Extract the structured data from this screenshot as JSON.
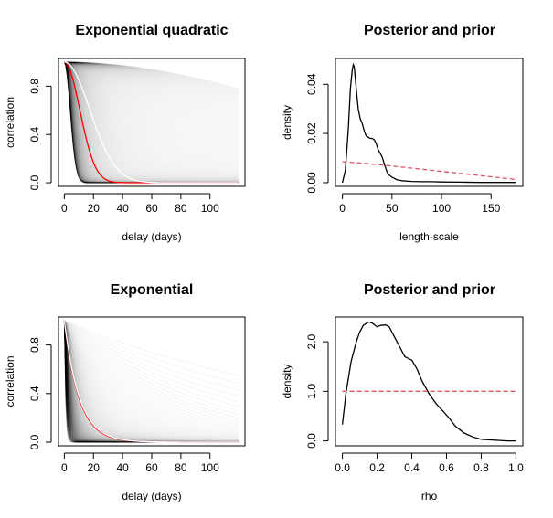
{
  "chart_data": [
    {
      "id": "exp-quadratic",
      "type": "line",
      "title": "Exponential quadratic",
      "xlabel": "delay (days)",
      "ylabel": "correlation",
      "xlim": [
        -4,
        124
      ],
      "ylim": [
        -0.03,
        1.03
      ],
      "xticks": [
        0,
        20,
        40,
        60,
        80,
        100
      ],
      "yticks": [
        0.0,
        0.4,
        0.8
      ],
      "tick_labels_x": [
        "0",
        "20",
        "40",
        "60",
        "80",
        "100"
      ],
      "tick_labels_y": [
        "0.0",
        "0.4",
        "0.8"
      ],
      "kernel": "exponential_quadratic",
      "sample_curves": {
        "count": 400,
        "length_scale_range": [
          4,
          170
        ],
        "color": "#000000"
      },
      "series": [
        {
          "length_scale": 10.6,
          "color": "#ff0000"
        },
        {
          "length_scale": 17.5,
          "color": "#ffffff"
        }
      ],
      "grid": false
    },
    {
      "id": "posterior-prior-1",
      "type": "line",
      "title": "Posterior and prior",
      "xlabel": "length-scale",
      "ylabel": "density",
      "xlim": [
        -7,
        182
      ],
      "ylim": [
        -0.0015,
        0.0505
      ],
      "xticks": [
        0,
        50,
        100,
        150
      ],
      "yticks": [
        0.0,
        0.02,
        0.04
      ],
      "tick_labels_x": [
        "0",
        "50",
        "100",
        "150"
      ],
      "tick_labels_y": [
        "0.00",
        "0.02",
        "0.04"
      ],
      "series": [
        {
          "color": "#000000",
          "dash": "solid",
          "x": [
            0,
            3,
            6,
            8,
            10,
            11,
            12,
            14,
            16,
            18,
            20,
            22,
            24,
            26,
            28,
            30,
            32,
            34,
            36,
            38,
            40,
            42,
            44,
            46,
            50,
            55,
            60,
            70,
            80,
            90,
            100,
            120,
            140,
            160,
            175
          ],
          "y": [
            0.0,
            0.005,
            0.022,
            0.038,
            0.046,
            0.048,
            0.047,
            0.038,
            0.03,
            0.026,
            0.024,
            0.021,
            0.019,
            0.0185,
            0.018,
            0.018,
            0.0175,
            0.016,
            0.0135,
            0.012,
            0.0105,
            0.008,
            0.0055,
            0.0035,
            0.0022,
            0.0012,
            0.0008,
            0.0005,
            0.0004,
            0.0004,
            0.0003,
            0.0002,
            0.0001,
            0.0001,
            0.0001
          ]
        },
        {
          "color": "#df536b",
          "dash": "dashed",
          "x": [
            0,
            25,
            50,
            75,
            100,
            125,
            150,
            175
          ],
          "y": [
            0.0085,
            0.0078,
            0.0068,
            0.0057,
            0.0046,
            0.0035,
            0.0024,
            0.0013
          ]
        }
      ],
      "grid": false
    },
    {
      "id": "exponential",
      "type": "line",
      "title": "Exponential",
      "xlabel": "delay (days)",
      "ylabel": "correlation",
      "xlim": [
        -4,
        124
      ],
      "ylim": [
        -0.03,
        1.03
      ],
      "xticks": [
        0,
        20,
        40,
        60,
        80,
        100
      ],
      "yticks": [
        0.0,
        0.4,
        0.8
      ],
      "tick_labels_x": [
        "0",
        "20",
        "40",
        "60",
        "80",
        "100"
      ],
      "tick_labels_y": [
        "0.0",
        "0.4",
        "0.8"
      ],
      "kernel": "exponential",
      "sample_curves": {
        "count": 400,
        "rho_range": [
          0.25,
          0.995
        ],
        "color": "#000000"
      },
      "series": [
        {
          "rho": 0.905,
          "color": "#ff0000"
        },
        {
          "rho": 0.908,
          "color": "#ffffff"
        }
      ],
      "grid": false
    },
    {
      "id": "posterior-prior-2",
      "type": "line",
      "title": "Posterior and prior",
      "xlabel": "rho",
      "ylabel": "density",
      "xlim": [
        -0.04,
        1.04
      ],
      "ylim": [
        -0.1,
        2.5
      ],
      "xticks": [
        0,
        0.2,
        0.4,
        0.6,
        0.8,
        1.0
      ],
      "yticks": [
        0.0,
        1.0,
        2.0
      ],
      "tick_labels_x": [
        "0.0",
        "0.2",
        "0.4",
        "0.6",
        "0.8",
        "1.0"
      ],
      "tick_labels_y": [
        "0.0",
        "1.0",
        "2.0"
      ],
      "series": [
        {
          "color": "#000000",
          "dash": "solid",
          "x": [
            0.0,
            0.02,
            0.05,
            0.08,
            0.1,
            0.12,
            0.15,
            0.17,
            0.2,
            0.22,
            0.25,
            0.27,
            0.3,
            0.33,
            0.36,
            0.4,
            0.43,
            0.46,
            0.5,
            0.54,
            0.58,
            0.61,
            0.65,
            0.7,
            0.75,
            0.8,
            0.85,
            0.9,
            0.95,
            1.0
          ],
          "y": [
            0.33,
            0.95,
            1.6,
            2.0,
            2.2,
            2.33,
            2.4,
            2.38,
            2.3,
            2.33,
            2.34,
            2.3,
            2.1,
            1.9,
            1.7,
            1.63,
            1.45,
            1.2,
            0.95,
            0.75,
            0.6,
            0.48,
            0.3,
            0.16,
            0.08,
            0.03,
            0.02,
            0.01,
            0.0,
            0.0
          ]
        },
        {
          "color": "#df536b",
          "dash": "dashed",
          "x": [
            0.0,
            1.0
          ],
          "y": [
            1.0,
            1.0
          ]
        }
      ],
      "grid": false
    }
  ]
}
